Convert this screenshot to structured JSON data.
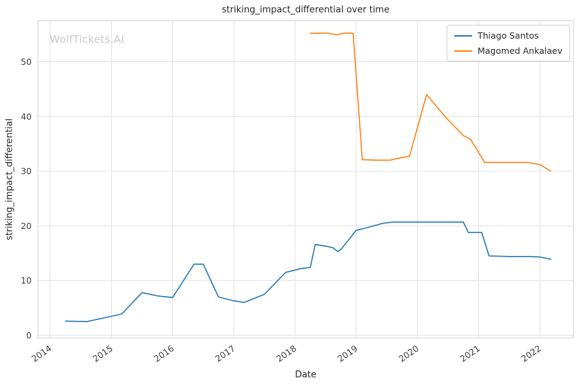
{
  "watermark": "WolfTickets.AI",
  "chart_data": {
    "type": "line",
    "title": "striking_impact_differential over time",
    "xlabel": "Date",
    "ylabel": "striking_impact_differential",
    "xlim": [
      2013.8,
      2022.55
    ],
    "ylim": [
      -0.5,
      57.5
    ],
    "x_ticks": [
      2014,
      2015,
      2016,
      2017,
      2018,
      2019,
      2020,
      2021,
      2022
    ],
    "y_ticks": [
      0,
      10,
      20,
      30,
      40,
      50
    ],
    "grid": true,
    "legend_position": "upper right",
    "colors": {
      "grid": "#e0e0e0",
      "plot_border": "#cfcfcf",
      "tick_label": "#3d3d3d"
    },
    "series": [
      {
        "name": "Thiago Santos",
        "color": "#1f77b4",
        "points": [
          [
            2014.25,
            2.6
          ],
          [
            2014.6,
            2.5
          ],
          [
            2015.05,
            3.6
          ],
          [
            2015.17,
            3.9
          ],
          [
            2015.5,
            7.8
          ],
          [
            2015.75,
            7.2
          ],
          [
            2016.0,
            6.9
          ],
          [
            2016.35,
            13.0
          ],
          [
            2016.5,
            13.0
          ],
          [
            2016.75,
            7.0
          ],
          [
            2017.0,
            6.3
          ],
          [
            2017.17,
            6.0
          ],
          [
            2017.5,
            7.5
          ],
          [
            2017.85,
            11.5
          ],
          [
            2018.1,
            12.2
          ],
          [
            2018.25,
            12.4
          ],
          [
            2018.33,
            16.6
          ],
          [
            2018.5,
            16.3
          ],
          [
            2018.62,
            16.0
          ],
          [
            2018.7,
            15.3
          ],
          [
            2018.76,
            15.8
          ],
          [
            2019.0,
            19.2
          ],
          [
            2019.12,
            19.5
          ],
          [
            2019.45,
            20.5
          ],
          [
            2019.6,
            20.7
          ],
          [
            2020.75,
            20.7
          ],
          [
            2020.83,
            18.8
          ],
          [
            2021.05,
            18.8
          ],
          [
            2021.17,
            14.5
          ],
          [
            2021.5,
            14.4
          ],
          [
            2021.85,
            14.4
          ],
          [
            2022.0,
            14.3
          ],
          [
            2022.18,
            13.9
          ]
        ]
      },
      {
        "name": "Magomed Ankalaev",
        "color": "#ff7f0e",
        "points": [
          [
            2018.25,
            55.2
          ],
          [
            2018.55,
            55.2
          ],
          [
            2018.68,
            54.9
          ],
          [
            2018.78,
            55.2
          ],
          [
            2018.95,
            55.2
          ],
          [
            2019.1,
            32.1
          ],
          [
            2019.35,
            32.0
          ],
          [
            2019.55,
            32.0
          ],
          [
            2019.75,
            32.5
          ],
          [
            2019.87,
            32.7
          ],
          [
            2020.15,
            44.0
          ],
          [
            2020.45,
            40.0
          ],
          [
            2020.75,
            36.5
          ],
          [
            2020.87,
            35.8
          ],
          [
            2021.1,
            31.6
          ],
          [
            2021.45,
            31.6
          ],
          [
            2021.8,
            31.6
          ],
          [
            2022.0,
            31.2
          ],
          [
            2022.18,
            30.0
          ]
        ]
      }
    ]
  }
}
